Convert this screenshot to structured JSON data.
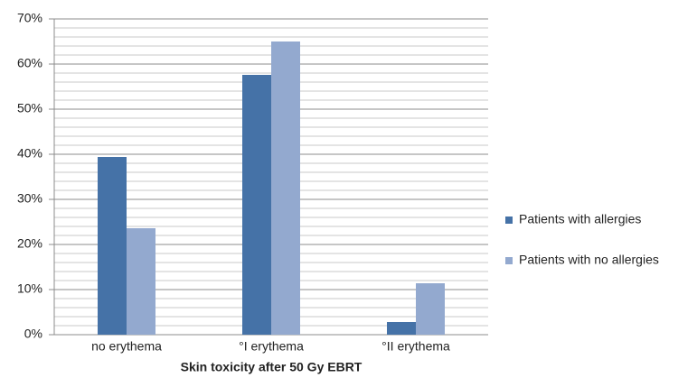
{
  "chart_data": {
    "type": "bar",
    "x_label": "Skin toxicity after 50 Gy EBRT",
    "categories": [
      "no erythema",
      "°I erythema",
      "°II erythema"
    ],
    "series": [
      {
        "name": "Patients with allergies",
        "color": "#4572a7",
        "values": [
          39.4,
          57.6,
          2.8
        ]
      },
      {
        "name": "Patients with no allergies",
        "color": "#93a9cf",
        "values": [
          23.6,
          65,
          11.4
        ]
      }
    ],
    "ylim": [
      0,
      70
    ],
    "yticks": [
      {
        "value": 0,
        "label": "0%"
      },
      {
        "value": 10,
        "label": "10%"
      },
      {
        "value": 20,
        "label": "20%"
      },
      {
        "value": 30,
        "label": "30%"
      },
      {
        "value": 40,
        "label": "40%"
      },
      {
        "value": 50,
        "label": "50%"
      },
      {
        "value": 60,
        "label": "60%"
      },
      {
        "value": 70,
        "label": "70%"
      }
    ],
    "minor_yticks": [
      2,
      4,
      6,
      8,
      12,
      14,
      16,
      18,
      22,
      24,
      26,
      28,
      32,
      34,
      36,
      38,
      42,
      44,
      46,
      48,
      52,
      54,
      56,
      58,
      62,
      64,
      66,
      68
    ],
    "grid": true,
    "legend": "right"
  }
}
